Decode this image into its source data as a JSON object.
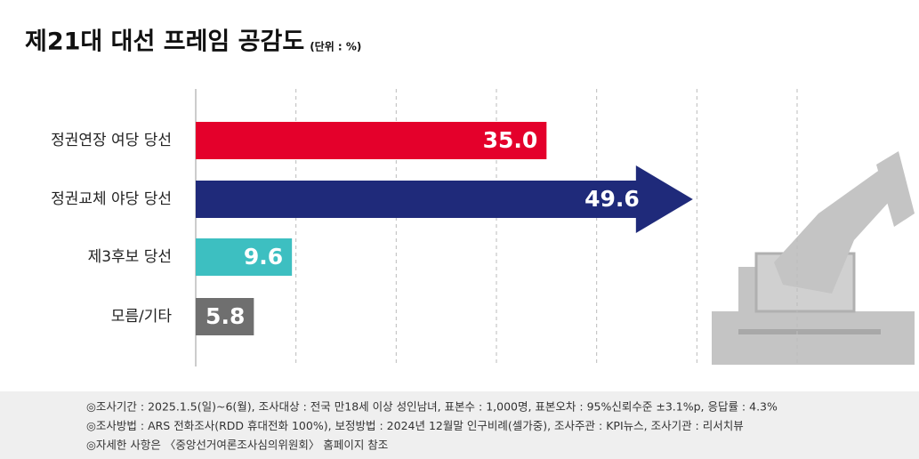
{
  "chart_data": {
    "type": "bar",
    "orientation": "horizontal",
    "title": "제21대 대선 프레임 공감도",
    "unit": "(단위 : %)",
    "categories": [
      "정권연장 여당 당선",
      "정권교체 야당 당선",
      "제3후보 당선",
      "모름/기타"
    ],
    "values": [
      35.0,
      49.6,
      9.6,
      5.8
    ],
    "value_labels": [
      "35.0",
      "49.6",
      "9.6",
      "5.8"
    ],
    "colors": [
      "#e4002b",
      "#1f2a7a",
      "#3dbfc1",
      "#6f6f6f"
    ],
    "xlim": [
      0,
      60
    ],
    "xticks": [
      0,
      10,
      20,
      30,
      40,
      50,
      60
    ],
    "grid": true,
    "notes": [
      "◎조사기간 : 2025.1.5(일)~6(월), 조사대상 : 전국 만18세 이상 성인남녀, 표본수 : 1,000명, 표본오차 : 95%신뢰수준 ±3.1%p, 응답률 : 4.3%",
      "◎조사방법 : ARS 전화조사(RDD 휴대전화 100%), 보정방법 : 2024년 12월말 인구비례(셀가중), 조사주관 : KPI뉴스, 조사기관 : 리서치뷰",
      "◎자세한 사항은 〈중앙선거여론조사심의위원회〉 홈페이지 참조"
    ]
  }
}
